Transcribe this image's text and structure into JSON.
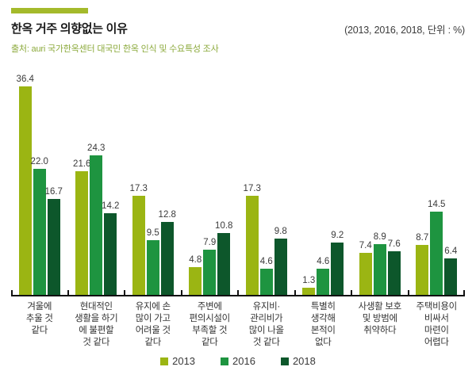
{
  "header": {
    "title": "한옥 거주 의향없는 이유",
    "unit_note": "(2013,  2016,  2018,  단위 : %)",
    "source": "출처: auri 국가한옥센터 대국민 한옥 인식 및 수요특성 조사"
  },
  "colors": {
    "accent_bar": "#a4ba2b",
    "source_text": "#8caa3c",
    "axis": "#111111",
    "value_label": "#3a3a3a",
    "series_2013": "#9bb513",
    "series_2016": "#1e9440",
    "series_2018": "#0d572b"
  },
  "chart_data": {
    "type": "bar",
    "title": "한옥 거주 의향없는 이유",
    "unit": "%",
    "grid": false,
    "legend_position": "bottom",
    "ylim": [
      0,
      38
    ],
    "categories": [
      [
        "겨울에",
        "추울 것",
        "같다"
      ],
      [
        "현대적인",
        "생활을 하기",
        "에 불편할",
        "것 같다"
      ],
      [
        "유지에 손",
        "많이 가고",
        "어려울 것",
        "같다"
      ],
      [
        "주변에",
        "편의시설이",
        "부족할 것",
        "같다"
      ],
      [
        "유지비·",
        "관리비가",
        "많이 나올",
        "것 같다"
      ],
      [
        "특별히",
        "생각해",
        "본적이",
        "없다"
      ],
      [
        "사생활 보호",
        "및 방범에",
        "취약하다"
      ],
      [
        "주택비용이",
        "비싸서",
        "마련이",
        "어렵다"
      ]
    ],
    "series": [
      {
        "name": "2013",
        "color": "#9bb513",
        "values": [
          36.4,
          21.6,
          17.3,
          4.8,
          17.3,
          1.3,
          7.4,
          8.7
        ]
      },
      {
        "name": "2016",
        "color": "#1e9440",
        "values": [
          22.0,
          24.3,
          9.5,
          7.9,
          4.6,
          4.6,
          8.9,
          14.5
        ]
      },
      {
        "name": "2018",
        "color": "#0d572b",
        "values": [
          16.7,
          14.2,
          12.8,
          10.8,
          9.8,
          9.2,
          7.6,
          6.4
        ]
      }
    ]
  }
}
